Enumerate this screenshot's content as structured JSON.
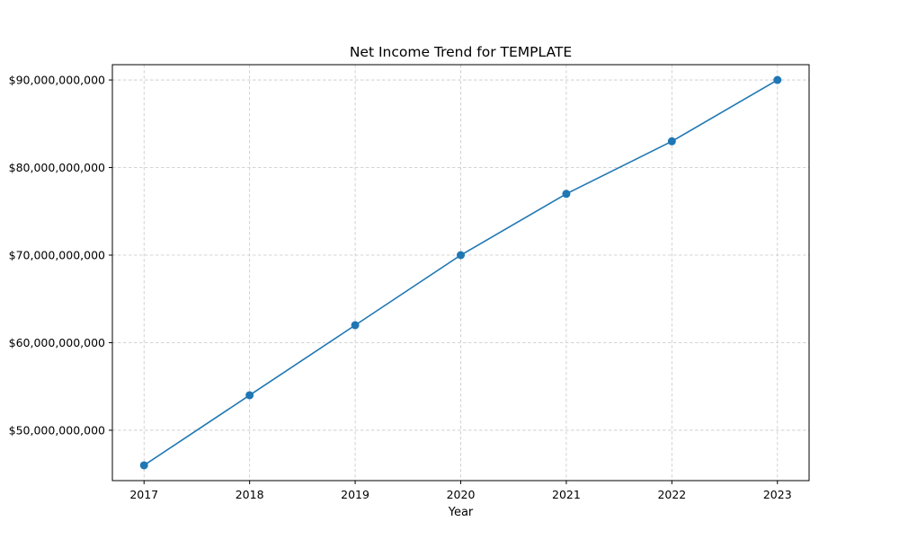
{
  "chart_data": {
    "type": "line",
    "title": "Net Income Trend for TEMPLATE",
    "xlabel": "Year",
    "ylabel": "",
    "x": [
      2017,
      2018,
      2019,
      2020,
      2021,
      2022,
      2023
    ],
    "x_tick_labels": [
      "2017",
      "2018",
      "2019",
      "2020",
      "2021",
      "2022",
      "2023"
    ],
    "series": [
      {
        "values": [
          46000000000,
          54000000000,
          62000000000,
          70000000000,
          77000000000,
          83000000000,
          90000000000
        ],
        "color": "#1f77b4",
        "marker": "circle"
      }
    ],
    "ylim": [
      44250000000,
      91750000000
    ],
    "xlim": [
      2016.7,
      2023.3
    ],
    "y_ticks": [
      50000000000,
      60000000000,
      70000000000,
      80000000000,
      90000000000
    ],
    "y_tick_labels": [
      "$50,000,000,000",
      "$60,000,000,000",
      "$70,000,000,000",
      "$80,000,000,000",
      "$90,000,000,000"
    ],
    "grid": true,
    "grid_style": "dashed",
    "grid_color": "#c8c8c8"
  }
}
